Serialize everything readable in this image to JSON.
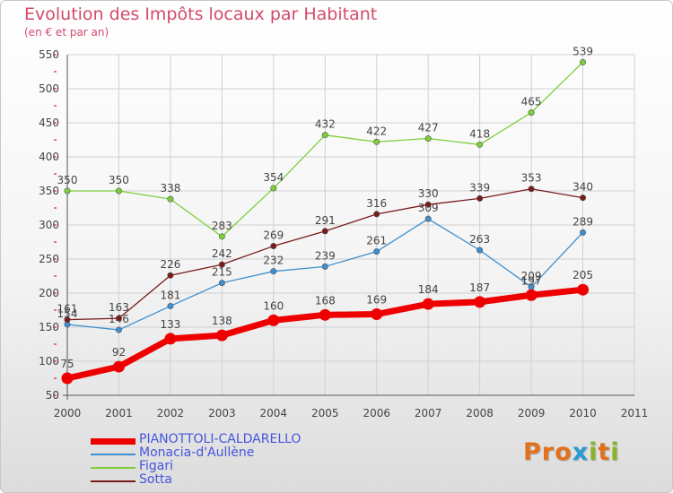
{
  "header": {
    "title": "Evolution des Impôts locaux par Habitant",
    "subtitle": "(en € et par an)"
  },
  "logo": {
    "letters": [
      "P",
      "r",
      "o",
      "x",
      "i",
      "t",
      "i"
    ]
  },
  "colors": {
    "grid": "#d0d0d0",
    "axis": "#555555",
    "tick_mark": "#cc0000",
    "title": "#d44a6a",
    "legend_text": "#4455dd",
    "logo": [
      "#e2711d",
      "#e2711d",
      "#e2711d",
      "#2a9ad6",
      "#8ab428",
      "#e2711d",
      "#8ab428"
    ]
  },
  "chart_data": {
    "type": "line",
    "title": "Evolution des Impôts locaux par Habitant",
    "subtitle": "(en € et par an)",
    "x": [
      2000,
      2001,
      2002,
      2003,
      2004,
      2005,
      2006,
      2007,
      2008,
      2009,
      2010
    ],
    "x_ticks": [
      "2000",
      "2001",
      "2002",
      "2003",
      "2004",
      "2005",
      "2006",
      "2007",
      "2008",
      "2009",
      "2010",
      "2011"
    ],
    "xlim": [
      2000,
      2011
    ],
    "y_ticks": [
      50,
      100,
      150,
      200,
      250,
      300,
      350,
      400,
      450,
      500,
      550
    ],
    "ylim": [
      50,
      550
    ],
    "grid": true,
    "legend_position": "bottom-left",
    "series": [
      {
        "name": "PIANOTTOLI-CALDARELLO",
        "color": "#ee0000",
        "bold": true,
        "values": [
          75,
          92,
          133,
          138,
          160,
          168,
          169,
          184,
          187,
          197,
          205
        ],
        "labels": [
          "75",
          "92",
          "133",
          "138",
          "160",
          "168",
          "169",
          "184",
          "187",
          "197",
          "205"
        ]
      },
      {
        "name": "Monacia-d'Aullène",
        "color": "#3d8fcf",
        "bold": false,
        "values": [
          154,
          146,
          181,
          215,
          232,
          239,
          261,
          309,
          263,
          209,
          289
        ],
        "labels": [
          "154",
          "146",
          "181",
          "215",
          "232",
          "239",
          "261",
          "309",
          "263",
          "209",
          "289"
        ]
      },
      {
        "name": "Figari",
        "color": "#7ccf3a",
        "bold": false,
        "values": [
          350,
          350,
          338,
          283,
          354,
          432,
          422,
          427,
          418,
          465,
          539
        ],
        "labels": [
          "350",
          "350",
          "338",
          "283",
          "354",
          "432",
          "422",
          "427",
          "418",
          "465",
          "539"
        ]
      },
      {
        "name": "Sotta",
        "color": "#7a1a1a",
        "bold": false,
        "values": [
          161,
          163,
          226,
          242,
          269,
          291,
          316,
          330,
          339,
          353,
          340
        ],
        "labels": [
          "161",
          "163",
          "226",
          "242",
          "269",
          "291",
          "316",
          "330",
          "339",
          "353",
          "340"
        ]
      }
    ]
  }
}
